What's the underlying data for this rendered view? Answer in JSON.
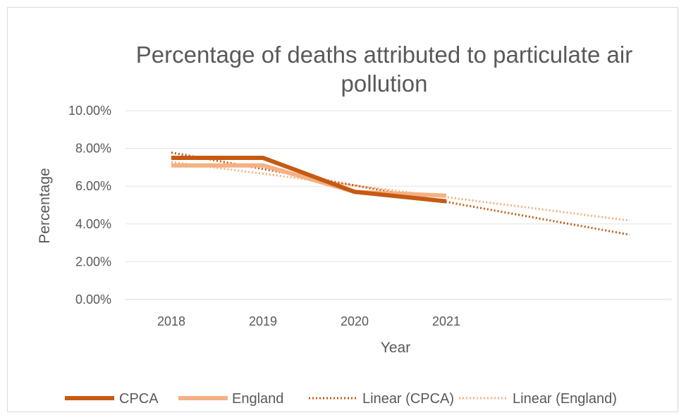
{
  "chart_data": {
    "type": "line",
    "title_lines": [
      "Percentage of deaths attributed to particulate air",
      "pollution"
    ],
    "xlabel": "Year",
    "ylabel": "Percentage",
    "categories": [
      "2018",
      "2019",
      "2020",
      "2021"
    ],
    "ylim": [
      0,
      0.1
    ],
    "yticks": [
      "0.00%",
      "2.00%",
      "4.00%",
      "6.00%",
      "8.00%",
      "10.00%"
    ],
    "grid": true,
    "legend_position": "bottom",
    "forecast_periods": 2,
    "series": [
      {
        "name": "CPCA",
        "values": [
          0.075,
          0.075,
          0.057,
          0.052
        ],
        "color": "#c55a11"
      },
      {
        "name": "England",
        "values": [
          0.071,
          0.071,
          0.057,
          0.055
        ],
        "color": "#f4b183"
      }
    ],
    "trendlines": [
      {
        "name": "Linear (CPCA)",
        "type": "linear",
        "of_series": "CPCA",
        "color": "#c55a11"
      },
      {
        "name": "Linear (England)",
        "type": "linear",
        "of_series": "England",
        "color": "#f4b183"
      }
    ]
  }
}
